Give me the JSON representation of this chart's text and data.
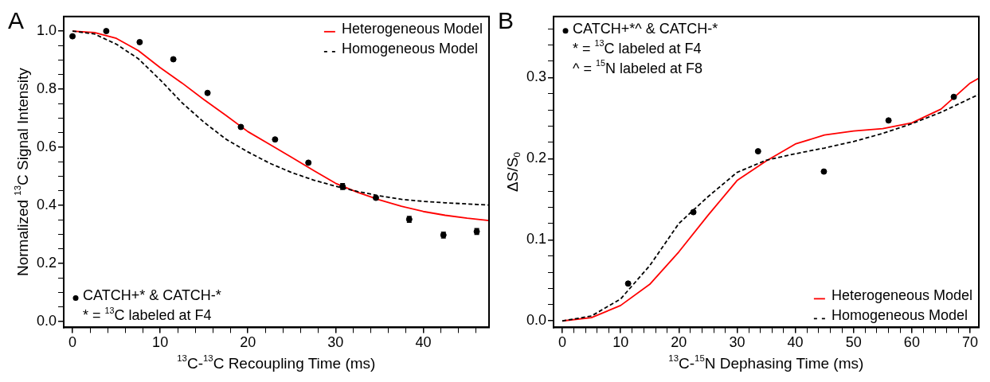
{
  "chart_data": [
    {
      "type": "line",
      "title": "A",
      "xlabel": "$^{13}$C-$^{13}$C Recoupling Time (ms)",
      "ylabel": "Normalized $^{13}$C Signal Intensity",
      "xlim": [
        -1,
        47.5
      ],
      "ylim": [
        -0.02,
        1.05
      ],
      "xticks": [
        0,
        {
          "value": 2,
          "label": null
        },
        {
          "value": 4,
          "label": null
        },
        {
          "value": 6,
          "label": null
        },
        {
          "value": 8,
          "label": null
        },
        10,
        {
          "value": 12,
          "label": null
        },
        {
          "value": 14,
          "label": null
        },
        {
          "value": 16,
          "label": null
        },
        {
          "value": 18,
          "label": null
        },
        20,
        {
          "value": 22,
          "label": null
        },
        {
          "value": 24,
          "label": null
        },
        {
          "value": 26,
          "label": null
        },
        {
          "value": 28,
          "label": null
        },
        30,
        {
          "value": 32,
          "label": null
        },
        {
          "value": 34,
          "label": null
        },
        {
          "value": 36,
          "label": null
        },
        {
          "value": 38,
          "label": null
        },
        40,
        {
          "value": 42,
          "label": null
        },
        {
          "value": 44,
          "label": null
        },
        {
          "value": 46,
          "label": null
        }
      ],
      "yticks": [
        {
          "value": 0,
          "label": "0.0"
        },
        {
          "value": 0.05,
          "label": null
        },
        {
          "value": 0.1,
          "label": null
        },
        {
          "value": 0.15,
          "label": null
        },
        0.2,
        {
          "value": 0.25,
          "label": null
        },
        {
          "value": 0.3,
          "label": null
        },
        {
          "value": 0.35,
          "label": null
        },
        0.4,
        {
          "value": 0.45,
          "label": null
        },
        {
          "value": 0.5,
          "label": null
        },
        {
          "value": 0.55,
          "label": null
        },
        0.6,
        {
          "value": 0.65,
          "label": null
        },
        {
          "value": 0.7,
          "label": null
        },
        {
          "value": 0.75,
          "label": null
        },
        0.8,
        {
          "value": 0.85,
          "label": null
        },
        {
          "value": 0.9,
          "label": null
        },
        {
          "value": 0.95,
          "label": null
        },
        {
          "value": 1,
          "label": "1.0"
        }
      ],
      "legend": "top right",
      "annotations": [
        "* = $^{13}$C labeled at F4"
      ],
      "series": [
        {
          "name": "CATCH+* & CATCH-*",
          "type": "scatter",
          "marker": "circle",
          "color": "#000000",
          "x": [
            0,
            3.85,
            7.66,
            11.5,
            15.4,
            19.2,
            23.1,
            26.9,
            30.8,
            34.6,
            38.4,
            42.3,
            46.1
          ],
          "values": [
            0.982,
            1.0,
            0.962,
            0.903,
            0.787,
            0.67,
            0.627,
            0.547,
            0.465,
            0.426,
            0.352,
            0.298,
            0.31
          ],
          "errors": [
            null,
            null,
            null,
            null,
            null,
            null,
            null,
            null,
            0.01,
            null,
            0.01,
            0.01,
            0.01
          ]
        },
        {
          "name": "Heterogeneous Model",
          "type": "line",
          "line_style": "solid",
          "color": "#ff0000",
          "x": [
            0,
            2.5,
            5,
            7.5,
            10,
            12.5,
            15,
            17.5,
            20,
            22.5,
            25,
            27.5,
            30,
            32.5,
            35,
            37.5,
            40,
            42.5,
            45,
            47.5
          ],
          "values": [
            1.0,
            0.995,
            0.975,
            0.933,
            0.874,
            0.821,
            0.764,
            0.71,
            0.654,
            0.61,
            0.565,
            0.52,
            0.476,
            0.445,
            0.419,
            0.397,
            0.379,
            0.366,
            0.356,
            0.348
          ]
        },
        {
          "name": "Homogeneous Model",
          "type": "line",
          "line_style": "dashed",
          "color": "#000000",
          "x": [
            0,
            2.5,
            5,
            7.5,
            10,
            12.5,
            15,
            17.5,
            20,
            22.5,
            25,
            27.5,
            30,
            32.5,
            35,
            37.5,
            40,
            42.5,
            45,
            47.5
          ],
          "values": [
            1.0,
            0.99,
            0.955,
            0.905,
            0.832,
            0.753,
            0.686,
            0.628,
            0.584,
            0.545,
            0.513,
            0.487,
            0.466,
            0.448,
            0.433,
            0.421,
            0.414,
            0.409,
            0.405,
            0.401
          ]
        }
      ]
    },
    {
      "type": "line",
      "title": "B",
      "xlabel": "$^{13}$C-$^{15}$N Dephasing Time (ms)",
      "ylabel": "ΔS/S$_{0}$",
      "xlim": [
        -1.5,
        71.5
      ],
      "ylim": [
        -0.008,
        0.375
      ],
      "xticks": [
        0,
        {
          "value": 2,
          "label": null
        },
        {
          "value": 4,
          "label": null
        },
        {
          "value": 6,
          "label": null
        },
        {
          "value": 8,
          "label": null
        },
        10,
        {
          "value": 12,
          "label": null
        },
        {
          "value": 14,
          "label": null
        },
        {
          "value": 16,
          "label": null
        },
        {
          "value": 18,
          "label": null
        },
        20,
        {
          "value": 22,
          "label": null
        },
        {
          "value": 24,
          "label": null
        },
        {
          "value": 26,
          "label": null
        },
        {
          "value": 28,
          "label": null
        },
        30,
        {
          "value": 32,
          "label": null
        },
        {
          "value": 34,
          "label": null
        },
        {
          "value": 36,
          "label": null
        },
        {
          "value": 38,
          "label": null
        },
        40,
        {
          "value": 42,
          "label": null
        },
        {
          "value": 44,
          "label": null
        },
        {
          "value": 46,
          "label": null
        },
        {
          "value": 48,
          "label": null
        },
        50,
        {
          "value": 52,
          "label": null
        },
        {
          "value": 54,
          "label": null
        },
        {
          "value": 56,
          "label": null
        },
        {
          "value": 58,
          "label": null
        },
        60,
        {
          "value": 62,
          "label": null
        },
        {
          "value": 64,
          "label": null
        },
        {
          "value": 66,
          "label": null
        },
        {
          "value": 68,
          "label": null
        },
        70
      ],
      "yticks": [
        {
          "value": 0,
          "label": "0.0"
        },
        {
          "value": 0.02,
          "label": null
        },
        {
          "value": 0.04,
          "label": null
        },
        {
          "value": 0.06,
          "label": null
        },
        {
          "value": 0.08,
          "label": null
        },
        0.1,
        {
          "value": 0.12,
          "label": null
        },
        {
          "value": 0.14,
          "label": null
        },
        {
          "value": 0.16,
          "label": null
        },
        {
          "value": 0.18,
          "label": null
        },
        0.2,
        {
          "value": 0.22,
          "label": null
        },
        {
          "value": 0.24,
          "label": null
        },
        {
          "value": 0.26,
          "label": null
        },
        {
          "value": 0.28,
          "label": null
        },
        0.3,
        {
          "value": 0.32,
          "label": null
        },
        {
          "value": 0.34,
          "label": null
        },
        {
          "value": 0.36,
          "label": null
        }
      ],
      "legend": "bottom right",
      "annotations": [
        "* = $^{13}$C labeled at F4",
        "^ = $^{15}$N labeled at F8"
      ],
      "series": [
        {
          "name": "CATCH+*^ & CATCH-*",
          "type": "scatter",
          "marker": "circle",
          "color": "#000000",
          "x": [
            11.3,
            22.5,
            33.6,
            44.9,
            56.0,
            67.2
          ],
          "values": [
            0.046,
            0.134,
            0.209,
            0.184,
            0.247,
            0.276
          ]
        },
        {
          "name": "Heterogeneous Model",
          "type": "line",
          "line_style": "solid",
          "color": "#ff0000",
          "x": [
            0,
            5,
            10,
            15,
            20,
            25,
            30,
            35,
            40,
            45,
            50,
            55,
            60,
            65,
            70,
            71.5
          ],
          "values": [
            0,
            0.004,
            0.019,
            0.045,
            0.085,
            0.13,
            0.173,
            0.197,
            0.218,
            0.229,
            0.234,
            0.237,
            0.244,
            0.261,
            0.293,
            0.299
          ]
        },
        {
          "name": "Homogeneous Model",
          "type": "line",
          "line_style": "dashed",
          "color": "#000000",
          "x": [
            0,
            5,
            10,
            15,
            20,
            25,
            30,
            35,
            40,
            45,
            50,
            55,
            60,
            65,
            70,
            71.5
          ],
          "values": [
            0,
            0.006,
            0.027,
            0.068,
            0.12,
            0.153,
            0.183,
            0.198,
            0.206,
            0.213,
            0.221,
            0.231,
            0.243,
            0.257,
            0.274,
            0.279
          ]
        }
      ]
    }
  ]
}
